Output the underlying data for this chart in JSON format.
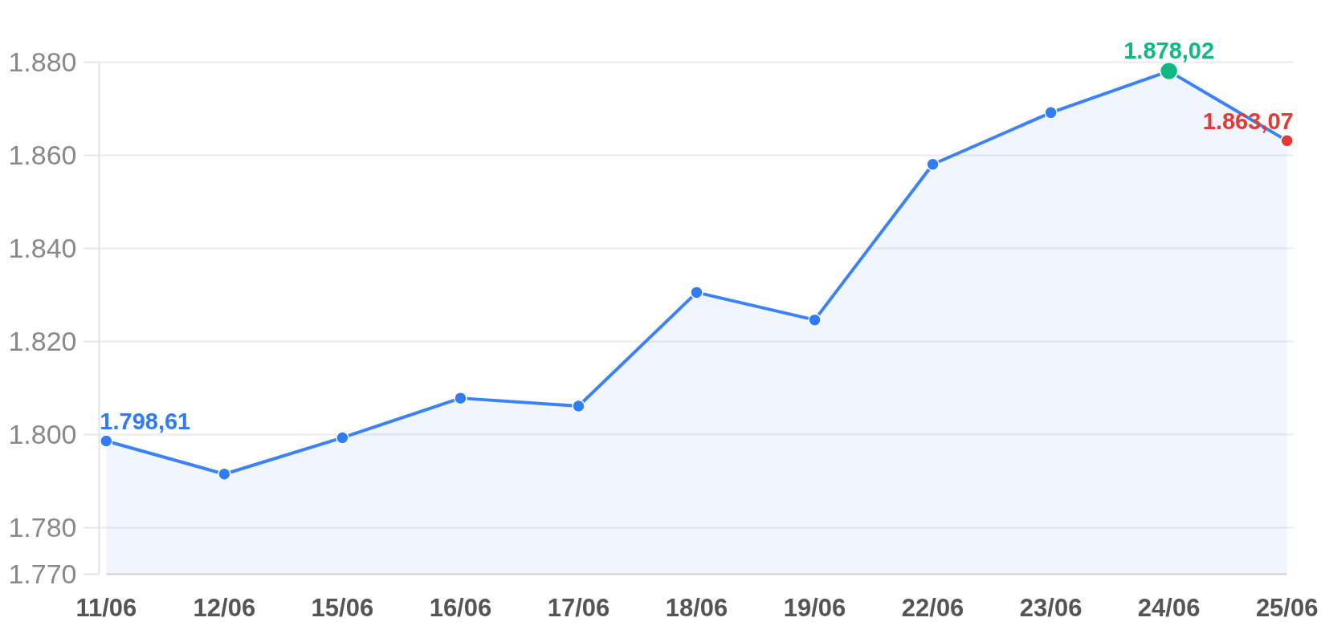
{
  "chart_data": {
    "type": "area",
    "categories": [
      "11/06",
      "12/06",
      "15/06",
      "16/06",
      "17/06",
      "18/06",
      "19/06",
      "22/06",
      "23/06",
      "24/06",
      "25/06"
    ],
    "series": [
      {
        "color": "#3b82f6",
        "colors": [
          "#2f7cf4",
          "#2f7cf4",
          "#2f7cf4",
          "#2f7cf4",
          "#2f7cf4",
          "#2f7cf4",
          "#2f7cf4",
          "#2f7cf4",
          "#2f7cf4",
          "#10b981",
          "#e53935"
        ],
        "values": [
          1798.61,
          1791.5,
          1799.3,
          1807.8,
          1806.1,
          1830.5,
          1824.6,
          1858.0,
          1869.1,
          1878.02,
          1863.07
        ],
        "value_labels": [
          "1.798,61",
          null,
          null,
          null,
          null,
          null,
          null,
          null,
          null,
          "1.878,02",
          "1.863,07"
        ]
      }
    ],
    "ylim": [
      1770,
      1880
    ],
    "yticks": [
      {
        "value": 1770,
        "label": "1.770"
      },
      {
        "value": 1780,
        "label": "1.780"
      },
      {
        "value": 1800,
        "label": "1.800"
      },
      {
        "value": 1820,
        "label": "1.820"
      },
      {
        "value": 1840,
        "label": "1.840"
      },
      {
        "value": 1860,
        "label": "1.860"
      },
      {
        "value": 1880,
        "label": "1.880"
      }
    ],
    "grid": "y",
    "marker": "circle",
    "line_style": "solid"
  }
}
